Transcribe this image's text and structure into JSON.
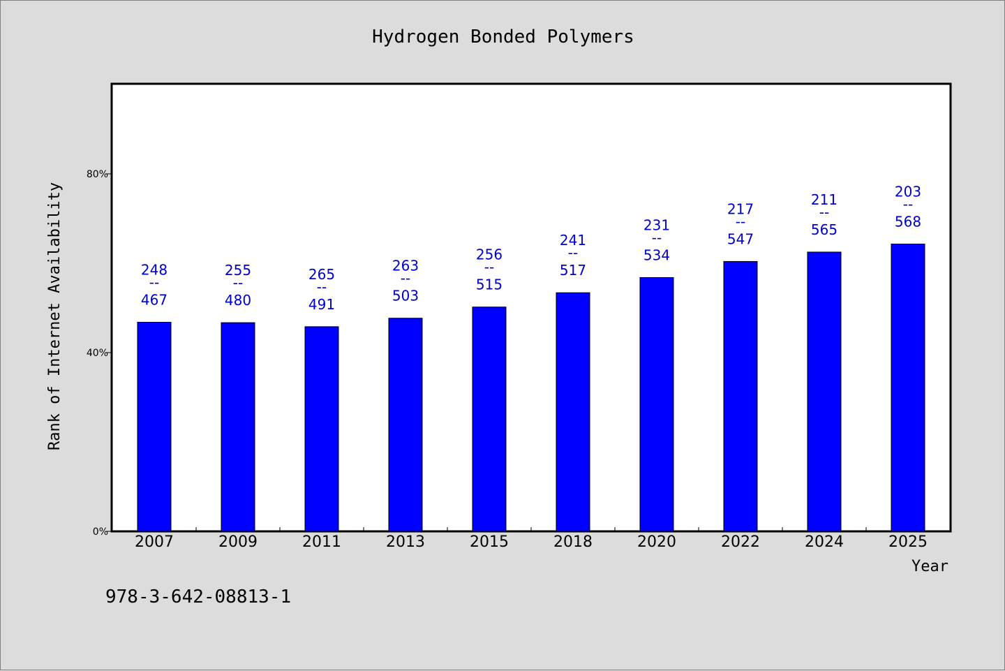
{
  "chart_data": {
    "type": "bar",
    "title": "Hydrogen Bonded Polymers",
    "xlabel": "Year",
    "ylabel": "Rank of Internet Availability",
    "categories": [
      "2007",
      "2009",
      "2011",
      "2013",
      "2015",
      "2018",
      "2020",
      "2022",
      "2024",
      "2025"
    ],
    "values": [
      0.468,
      0.467,
      0.458,
      0.477,
      0.502,
      0.534,
      0.568,
      0.604,
      0.625,
      0.643
    ],
    "labels_top": [
      "248",
      "255",
      "265",
      "263",
      "256",
      "241",
      "231",
      "217",
      "211",
      "203"
    ],
    "labels_separator": "--",
    "labels_bottom": [
      "467",
      "480",
      "491",
      "503",
      "515",
      "517",
      "534",
      "547",
      "565",
      "568"
    ],
    "yticks": [
      {
        "value": 0,
        "label": "0%"
      },
      {
        "value": 0.4,
        "label": "40%"
      },
      {
        "value": 0.8,
        "label": "80%"
      }
    ],
    "ylim": [
      0,
      1.0
    ],
    "grid": false,
    "bar_color": "#0000ff",
    "label_color": "#0000cc"
  },
  "footer": {
    "isbn": "978-3-642-08813-1"
  }
}
